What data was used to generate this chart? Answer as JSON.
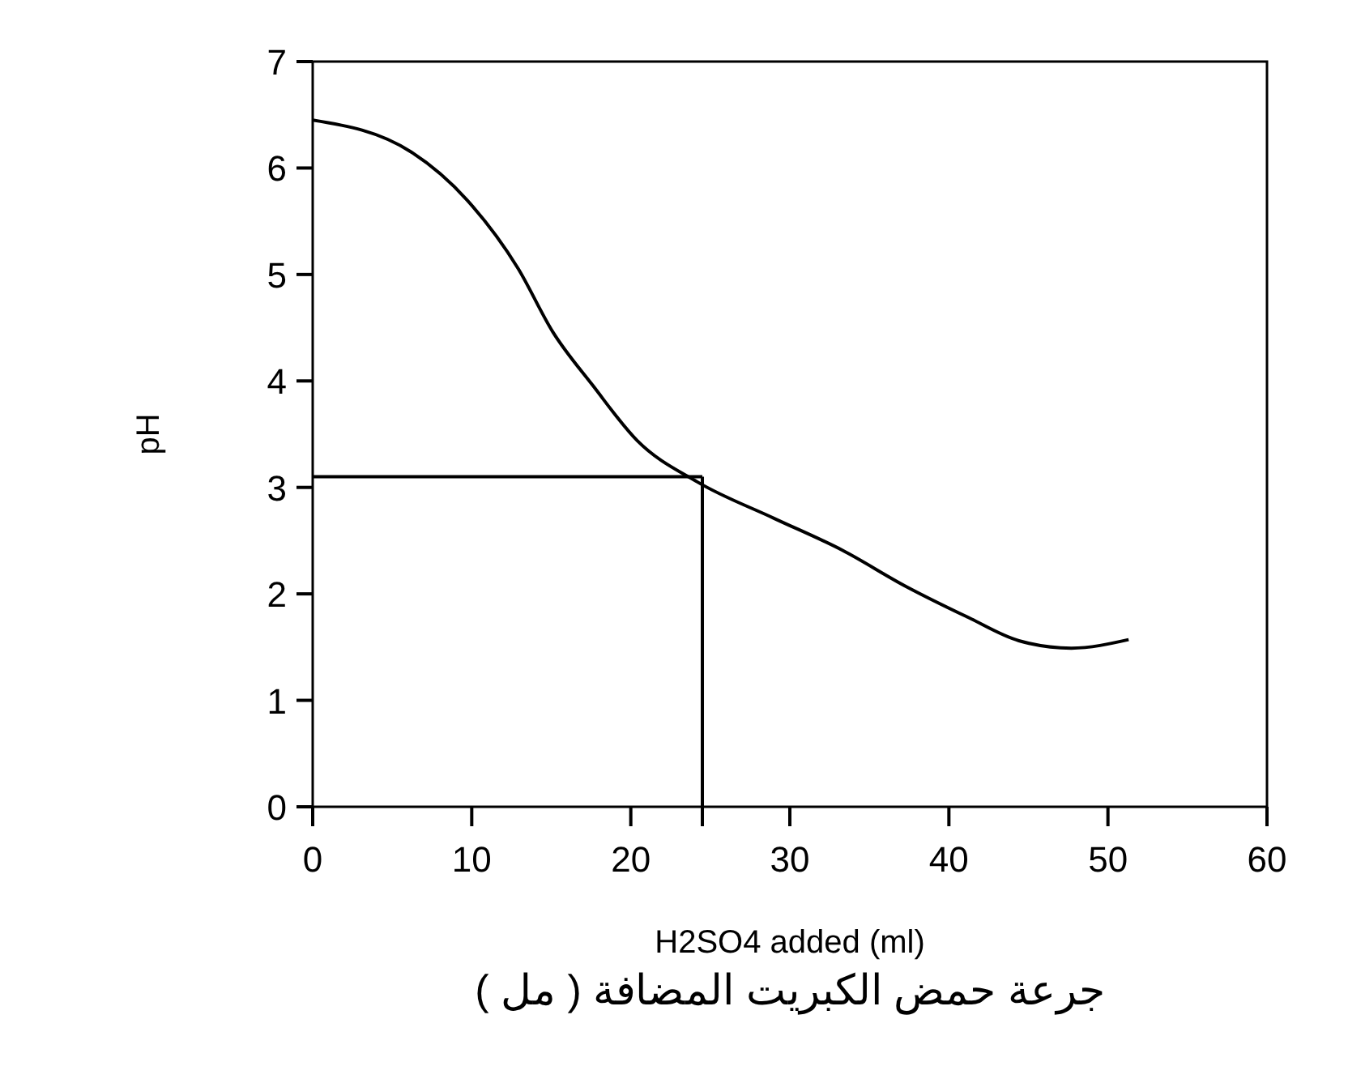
{
  "chart_data": {
    "type": "line",
    "xlabel": "H2SO4 added (ml)",
    "ylabel": "pH",
    "annotations": [
      "جرعة حمض الكبريت المضافة ( مل )"
    ],
    "xlim": [
      0,
      60
    ],
    "ylim": [
      0,
      7
    ],
    "xticks": [
      0,
      10,
      20,
      30,
      40,
      50,
      60
    ],
    "yticks": [
      0,
      1,
      2,
      3,
      4,
      5,
      6,
      7
    ],
    "grid": false,
    "marker": "none",
    "line_style": "solid",
    "series": [
      {
        "color": "#000000",
        "x": [
          0,
          6.2,
          9.7,
          12.9,
          15.1,
          17.6,
          20.4,
          24.2,
          29,
          33.3,
          37.3,
          41.2,
          44.4,
          47.7,
          51.3
        ],
        "values": [
          6.45,
          6.15,
          5.7,
          5.06,
          4.46,
          3.96,
          3.44,
          3.05,
          2.71,
          2.41,
          2.07,
          1.78,
          1.56,
          1.49,
          1.57
        ]
      }
    ],
    "ref_lines": [
      {
        "axis": "y",
        "value": 3.1,
        "color": "#000000"
      },
      {
        "axis": "x",
        "value": 24.5,
        "color": "#000000"
      }
    ]
  }
}
